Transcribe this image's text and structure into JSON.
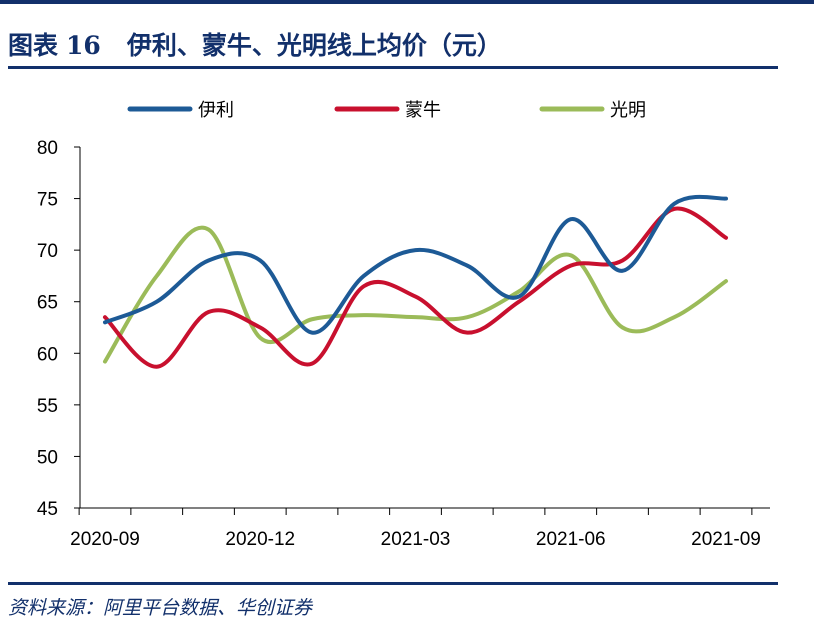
{
  "figure": {
    "label": "图表",
    "number": "16",
    "title": "伊利、蒙牛、光明线上均价（元）"
  },
  "source": "资料来源：阿里平台数据、华创证券",
  "colors": {
    "brand": "#12306b",
    "yili": "#1d5a96",
    "mengniu": "#c8102e",
    "guangming": "#9bbb59"
  },
  "chart_data": {
    "type": "line",
    "title": "伊利、蒙牛、光明线上均价（元）",
    "xlabel": "",
    "ylabel": "",
    "ylim": [
      45,
      80
    ],
    "yticks": [
      80,
      75,
      70,
      65,
      60,
      55,
      50,
      45
    ],
    "xticks": [
      "2020-09",
      "2020-12",
      "2021-03",
      "2021-06",
      "2021-09"
    ],
    "x": [
      "2020-09",
      "2020-10",
      "2020-11",
      "2020-12",
      "2021-01",
      "2021-02",
      "2021-03",
      "2021-04",
      "2021-05",
      "2021-06",
      "2021-07",
      "2021-08",
      "2021-09"
    ],
    "legend_position": "top",
    "series": [
      {
        "name": "伊利",
        "color": "#1d5a96",
        "values": [
          63.0,
          65.0,
          69.0,
          69.0,
          62.0,
          67.5,
          70.0,
          68.5,
          65.5,
          73.0,
          68.0,
          74.5,
          75.0
        ]
      },
      {
        "name": "蒙牛",
        "color": "#c8102e",
        "values": [
          63.5,
          58.7,
          64.0,
          62.5,
          59.0,
          66.5,
          65.5,
          62.0,
          65.0,
          68.5,
          69.0,
          74.0,
          71.2
        ]
      },
      {
        "name": "光明",
        "color": "#9bbb59",
        "values": [
          59.2,
          67.5,
          72.0,
          61.5,
          63.3,
          63.7,
          63.5,
          63.5,
          66.0,
          69.5,
          62.5,
          63.5,
          67.0
        ]
      }
    ]
  }
}
